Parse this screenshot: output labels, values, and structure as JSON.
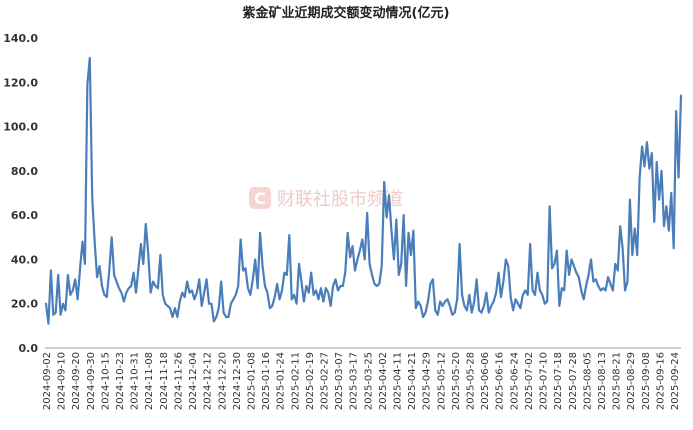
{
  "chart_data": {
    "type": "line",
    "title": "紫金矿业近期成交额变动情况(亿元)",
    "watermark": "财联社股市频道",
    "ylim": [
      0,
      140
    ],
    "yticks": [
      "0.0",
      "20.0",
      "40.0",
      "60.0",
      "80.0",
      "100.0",
      "120.0",
      "140.0"
    ],
    "grid": false,
    "x_tick_labels": [
      "2024-09-02",
      "2024-09-10",
      "2024-09-20",
      "2024-09-30",
      "2024-10-15",
      "2024-10-23",
      "2024-10-31",
      "2024-11-08",
      "2024-11-18",
      "2024-11-26",
      "2024-12-04",
      "2024-12-12",
      "2024-12-20",
      "2024-12-30",
      "2025-01-08",
      "2025-01-16",
      "2025-01-24",
      "2025-02-11",
      "2025-02-19",
      "2025-02-27",
      "2025-03-07",
      "2025-03-17",
      "2025-03-25",
      "2025-04-02",
      "2025-04-11",
      "2025-04-21",
      "2025-04-29",
      "2025-05-12",
      "2025-05-20",
      "2025-05-28",
      "2025-06-06",
      "2025-06-16",
      "2025-06-24",
      "2025-07-02",
      "2025-07-10",
      "2025-07-18",
      "2025-07-28",
      "2025-08-05",
      "2025-08-13",
      "2025-08-21",
      "2025-08-29",
      "2025-09-08",
      "2025-09-16",
      "2025-09-24"
    ],
    "series": [
      {
        "color": "#4a7ebb",
        "values": [
          20,
          11,
          35,
          15,
          16,
          33,
          15,
          20,
          17,
          33,
          24,
          26,
          31,
          22,
          36,
          48,
          38,
          119,
          131,
          68,
          48,
          32,
          37,
          28,
          24,
          23,
          35,
          50,
          33,
          30,
          27,
          25,
          21,
          25,
          27,
          28,
          34,
          25,
          36,
          47,
          38,
          56,
          43,
          25,
          30,
          28,
          27,
          42,
          24,
          20,
          19,
          18,
          14,
          18,
          14,
          21,
          25,
          23,
          30,
          25,
          26,
          22,
          25,
          31,
          19,
          25,
          31,
          20,
          20,
          12,
          14,
          18,
          30,
          16,
          14,
          14,
          20,
          22,
          24,
          28,
          49,
          35,
          36,
          27,
          24,
          31,
          40,
          27,
          52,
          37,
          28,
          25,
          18,
          19,
          23,
          29,
          22,
          26,
          34,
          33,
          51,
          22,
          24,
          20,
          38,
          30,
          21,
          28,
          25,
          34,
          24,
          26,
          22,
          27,
          21,
          27,
          25,
          19,
          28,
          31,
          26,
          28,
          28,
          34,
          52,
          41,
          46,
          35,
          40,
          44,
          49,
          40,
          61,
          38,
          33,
          29,
          28,
          29,
          37,
          75,
          59,
          69,
          53,
          40,
          58,
          33,
          38,
          60,
          28,
          52,
          42,
          53,
          18,
          21,
          19,
          14,
          16,
          21,
          29,
          31,
          17,
          15,
          21,
          19,
          21,
          22,
          19,
          15,
          16,
          22,
          47,
          24,
          19,
          17,
          24,
          16,
          21,
          31,
          17,
          16,
          19,
          25,
          16,
          19,
          21,
          25,
          34,
          23,
          30,
          40,
          37,
          23,
          17,
          22,
          20,
          18,
          24,
          26,
          24,
          47,
          26,
          24,
          34,
          26,
          24,
          20,
          21,
          64,
          36,
          38,
          44,
          19,
          27,
          26,
          44,
          33,
          40,
          37,
          34,
          32,
          26,
          22,
          28,
          33,
          40,
          30,
          31,
          28,
          26,
          27,
          26,
          32,
          29,
          26,
          38,
          35,
          55,
          45,
          26,
          30,
          67,
          42,
          54,
          42,
          77,
          91,
          82,
          93,
          81,
          88,
          57,
          84,
          67,
          80,
          55,
          64,
          53,
          70,
          45,
          107,
          77,
          114
        ]
      }
    ]
  }
}
